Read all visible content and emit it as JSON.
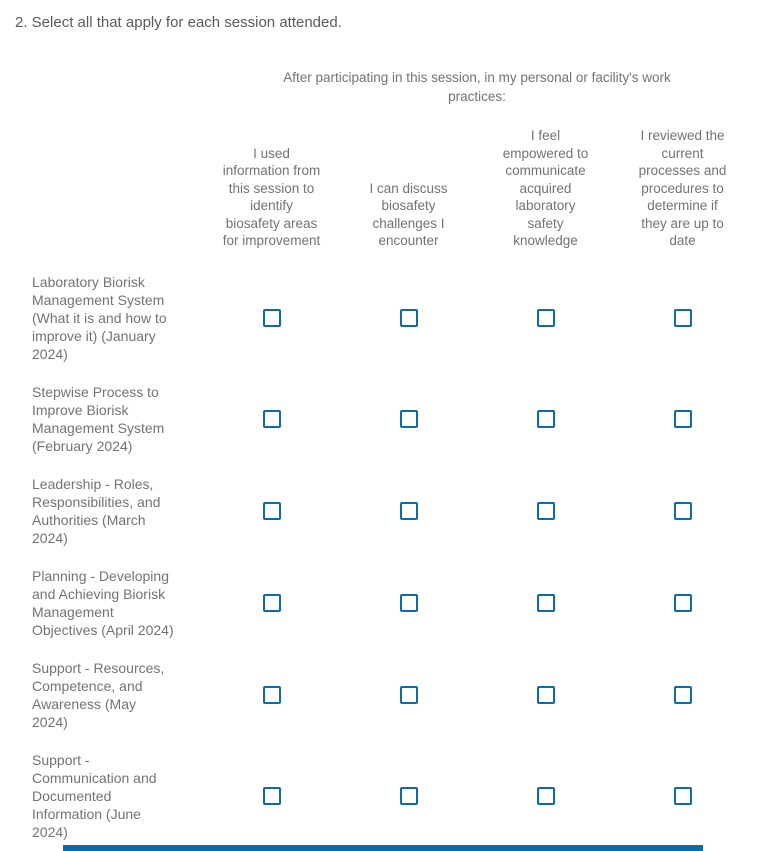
{
  "question": {
    "title": "2. Select all that apply for each session attended."
  },
  "matrix": {
    "statement": "After participating in this session, in my personal or facility's work\npractices:",
    "columns": [
      "I used\ninformation from\nthis session to\nidentify\nbiosafety areas\nfor improvement",
      "I can discuss\nbiosafety\nchallenges I\nencounter",
      "I feel\nempowered to\ncommunicate\nacquired\nlaboratory\nsafety\nknowledge",
      "I reviewed the\ncurrent\nprocesses and\nprocedures to\ndetermine if\nthey are up to\ndate"
    ],
    "rows": [
      {
        "label": "Laboratory Biorisk\nManagement System\n(What it is and how to\nimprove it) (January\n2024)",
        "checked": [
          false,
          false,
          false,
          false
        ]
      },
      {
        "label": "Stepwise Process to\nImprove Biorisk\nManagement System\n(February 2024)",
        "checked": [
          false,
          false,
          false,
          false
        ]
      },
      {
        "label": "Leadership - Roles,\nResponsibilities, and\nAuthorities (March\n2024)",
        "checked": [
          false,
          false,
          false,
          false
        ]
      },
      {
        "label": "Planning - Developing\nand Achieving Biorisk\nManagement\nObjectives (April 2024)",
        "checked": [
          false,
          false,
          false,
          false
        ]
      },
      {
        "label": "Support - Resources,\nCompetence, and\nAwareness (May\n2024)",
        "checked": [
          false,
          false,
          false,
          false
        ]
      },
      {
        "label": "Support -\nCommunication and\nDocumented\nInformation (June\n2024)",
        "checked": [
          false,
          false,
          false,
          false
        ]
      }
    ]
  },
  "colors": {
    "question_text": "#5a5a5a",
    "body_text": "#737373",
    "checkbox_border": "#0e6ba8",
    "partial_element": "#0e6ba8",
    "page_bg": "#ffffff"
  }
}
